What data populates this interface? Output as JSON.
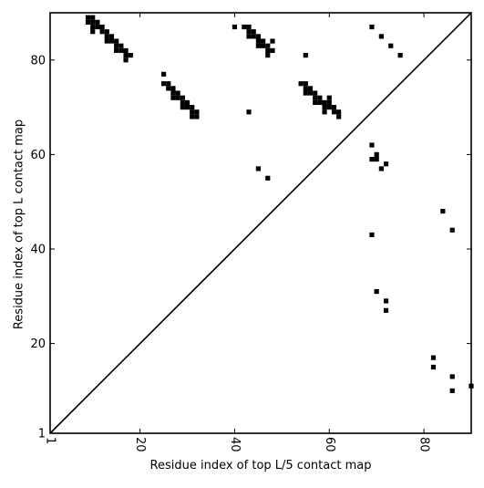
{
  "chart_data": {
    "type": "scatter",
    "title": "",
    "xlabel": "Residue index of top L/5 contact map",
    "ylabel": "Residue index of top L contact map",
    "xlim": [
      1,
      90
    ],
    "ylim": [
      1,
      90
    ],
    "xticks": [
      1,
      20,
      40,
      60,
      80
    ],
    "yticks": [
      1,
      20,
      40,
      60,
      80
    ],
    "x_tick_rotation": -90,
    "marker": "square",
    "marker_color": "#000000",
    "diagonal_line": true,
    "grid": false,
    "points": [
      [
        9,
        89
      ],
      [
        9,
        88
      ],
      [
        10,
        89
      ],
      [
        10,
        88
      ],
      [
        10,
        87
      ],
      [
        10,
        86
      ],
      [
        11,
        88
      ],
      [
        11,
        87
      ],
      [
        12,
        87
      ],
      [
        12,
        86
      ],
      [
        13,
        86
      ],
      [
        13,
        85
      ],
      [
        13,
        84
      ],
      [
        14,
        85
      ],
      [
        14,
        84
      ],
      [
        15,
        84
      ],
      [
        15,
        83
      ],
      [
        15,
        82
      ],
      [
        16,
        83
      ],
      [
        16,
        82
      ],
      [
        17,
        82
      ],
      [
        17,
        81
      ],
      [
        17,
        80
      ],
      [
        18,
        81
      ],
      [
        25,
        77
      ],
      [
        25,
        75
      ],
      [
        26,
        75
      ],
      [
        26,
        74
      ],
      [
        27,
        74
      ],
      [
        27,
        73
      ],
      [
        27,
        72
      ],
      [
        28,
        73
      ],
      [
        28,
        72
      ],
      [
        29,
        72
      ],
      [
        29,
        71
      ],
      [
        29,
        70
      ],
      [
        30,
        71
      ],
      [
        30,
        70
      ],
      [
        31,
        70
      ],
      [
        31,
        69
      ],
      [
        31,
        68
      ],
      [
        32,
        69
      ],
      [
        32,
        68
      ],
      [
        40,
        87
      ],
      [
        42,
        87
      ],
      [
        43,
        87
      ],
      [
        43,
        86
      ],
      [
        43,
        85
      ],
      [
        44,
        86
      ],
      [
        44,
        85
      ],
      [
        45,
        85
      ],
      [
        45,
        84
      ],
      [
        45,
        83
      ],
      [
        46,
        84
      ],
      [
        46,
        83
      ],
      [
        47,
        83
      ],
      [
        47,
        82
      ],
      [
        47,
        81
      ],
      [
        48,
        84
      ],
      [
        48,
        82
      ],
      [
        43,
        69
      ],
      [
        45,
        57
      ],
      [
        47,
        55
      ],
      [
        55,
        81
      ],
      [
        54,
        75
      ],
      [
        55,
        75
      ],
      [
        55,
        74
      ],
      [
        55,
        73
      ],
      [
        56,
        74
      ],
      [
        56,
        73
      ],
      [
        57,
        73
      ],
      [
        57,
        72
      ],
      [
        57,
        71
      ],
      [
        58,
        72
      ],
      [
        58,
        71
      ],
      [
        59,
        71
      ],
      [
        59,
        70
      ],
      [
        59,
        69
      ],
      [
        60,
        72
      ],
      [
        60,
        71
      ],
      [
        60,
        70
      ],
      [
        61,
        70
      ],
      [
        61,
        69
      ],
      [
        62,
        69
      ],
      [
        62,
        68
      ],
      [
        69,
        87
      ],
      [
        71,
        85
      ],
      [
        73,
        83
      ],
      [
        75,
        81
      ],
      [
        69,
        62
      ],
      [
        69,
        59
      ],
      [
        70,
        60
      ],
      [
        70,
        59
      ],
      [
        71,
        57
      ],
      [
        72,
        58
      ],
      [
        84,
        48
      ],
      [
        86,
        44
      ],
      [
        69,
        43
      ],
      [
        70,
        31
      ],
      [
        72,
        29
      ],
      [
        72,
        27
      ],
      [
        82,
        17
      ],
      [
        82,
        15
      ],
      [
        86,
        13
      ],
      [
        86,
        10
      ],
      [
        90,
        11
      ]
    ]
  }
}
